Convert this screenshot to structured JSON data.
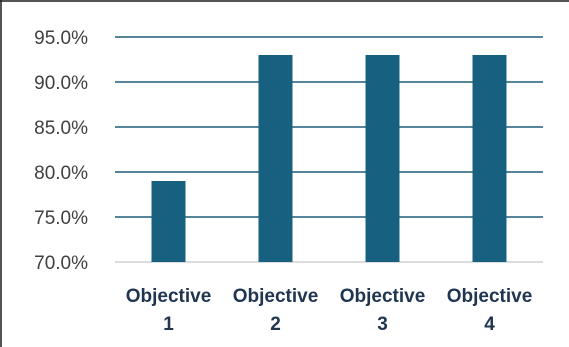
{
  "chart_data": {
    "type": "bar",
    "categories": [
      "Objective 1",
      "Objective 2",
      "Objective 3",
      "Objective 4"
    ],
    "category_label_lines": [
      [
        "Objective",
        "1"
      ],
      [
        "Objective",
        "2"
      ],
      [
        "Objective",
        "3"
      ],
      [
        "Objective",
        "4"
      ]
    ],
    "values": [
      79.0,
      93.0,
      93.0,
      93.0
    ],
    "ylim": [
      70.0,
      95.0
    ],
    "yticks": [
      70.0,
      75.0,
      80.0,
      85.0,
      90.0,
      95.0
    ],
    "ytick_labels": [
      "70.0%",
      "75.0%",
      "80.0%",
      "85.0%",
      "90.0%",
      "95.0%"
    ],
    "title": "",
    "xlabel": "",
    "ylabel": "",
    "grid": true,
    "legend": "none",
    "colors": {
      "bar": "#17607f",
      "gridline": "#1f5b7a",
      "frame": "#1c1c1c",
      "tick_text": "#404040",
      "category_text": "#1f3550"
    }
  }
}
